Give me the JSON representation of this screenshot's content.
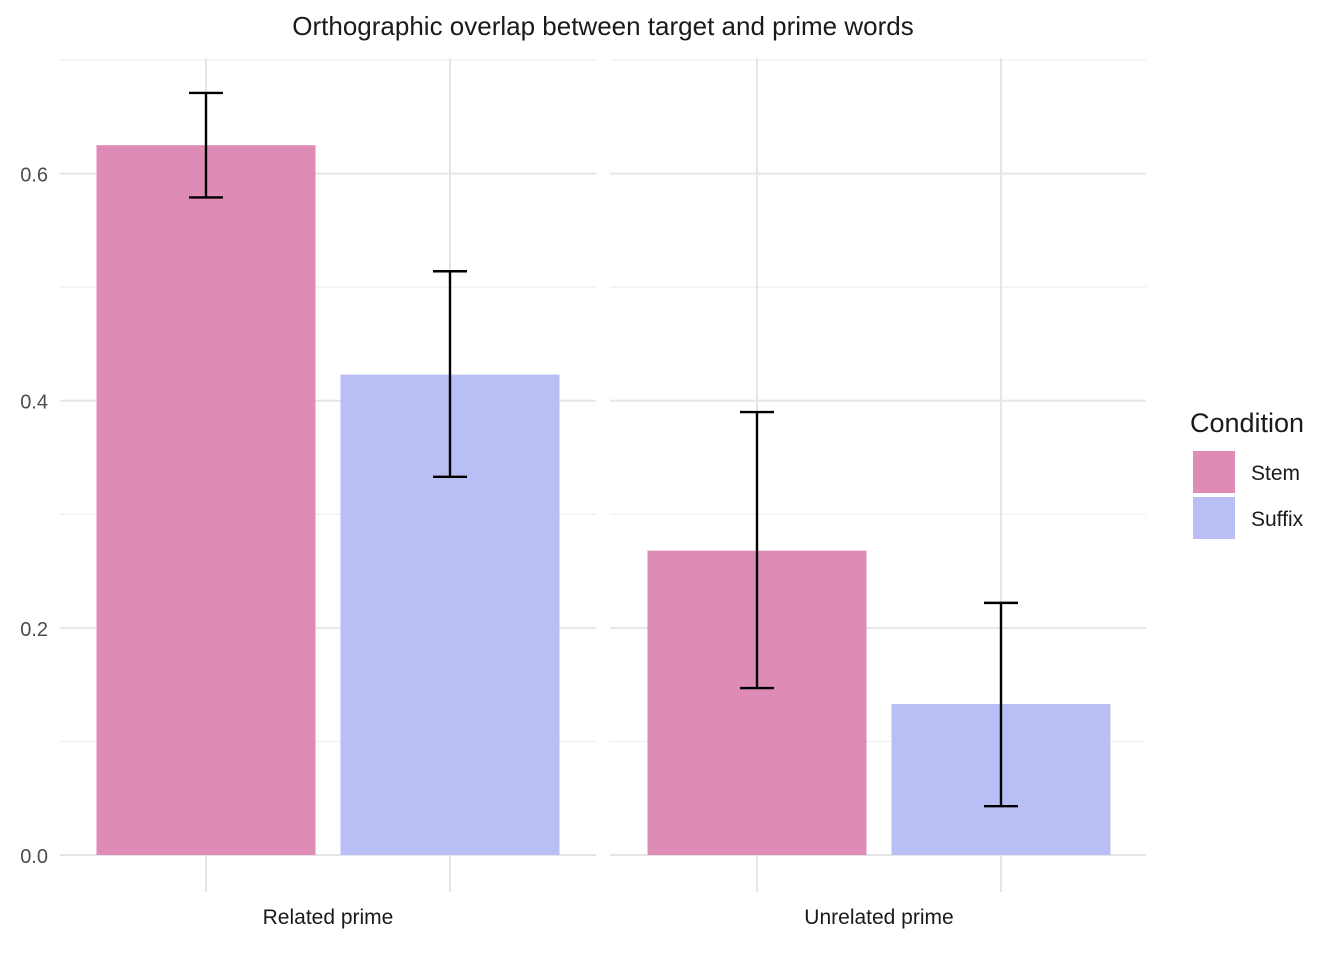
{
  "chart_data": {
    "type": "bar",
    "title": "Orthographic overlap between target and prime words",
    "xlabel": "",
    "ylabel": "",
    "ylim": [
      0,
      0.7
    ],
    "y_ticks": [
      0.0,
      0.2,
      0.4,
      0.6
    ],
    "y_tick_labels": [
      "0.0",
      "0.2",
      "0.4",
      "0.6"
    ],
    "grid": true,
    "legend": {
      "title": "Condition",
      "position": "right"
    },
    "panels": [
      "Related prime",
      "Unrelated prime"
    ],
    "series": [
      {
        "name": "Stem",
        "color": "#de8bb6",
        "values": [
          0.625,
          0.268
        ],
        "error_low": [
          0.579,
          0.147
        ],
        "error_high": [
          0.671,
          0.39
        ]
      },
      {
        "name": "Suffix",
        "color": "#b9bff5",
        "values": [
          0.423,
          0.133
        ],
        "error_low": [
          0.333,
          0.043
        ],
        "error_high": [
          0.514,
          0.222
        ]
      }
    ]
  }
}
